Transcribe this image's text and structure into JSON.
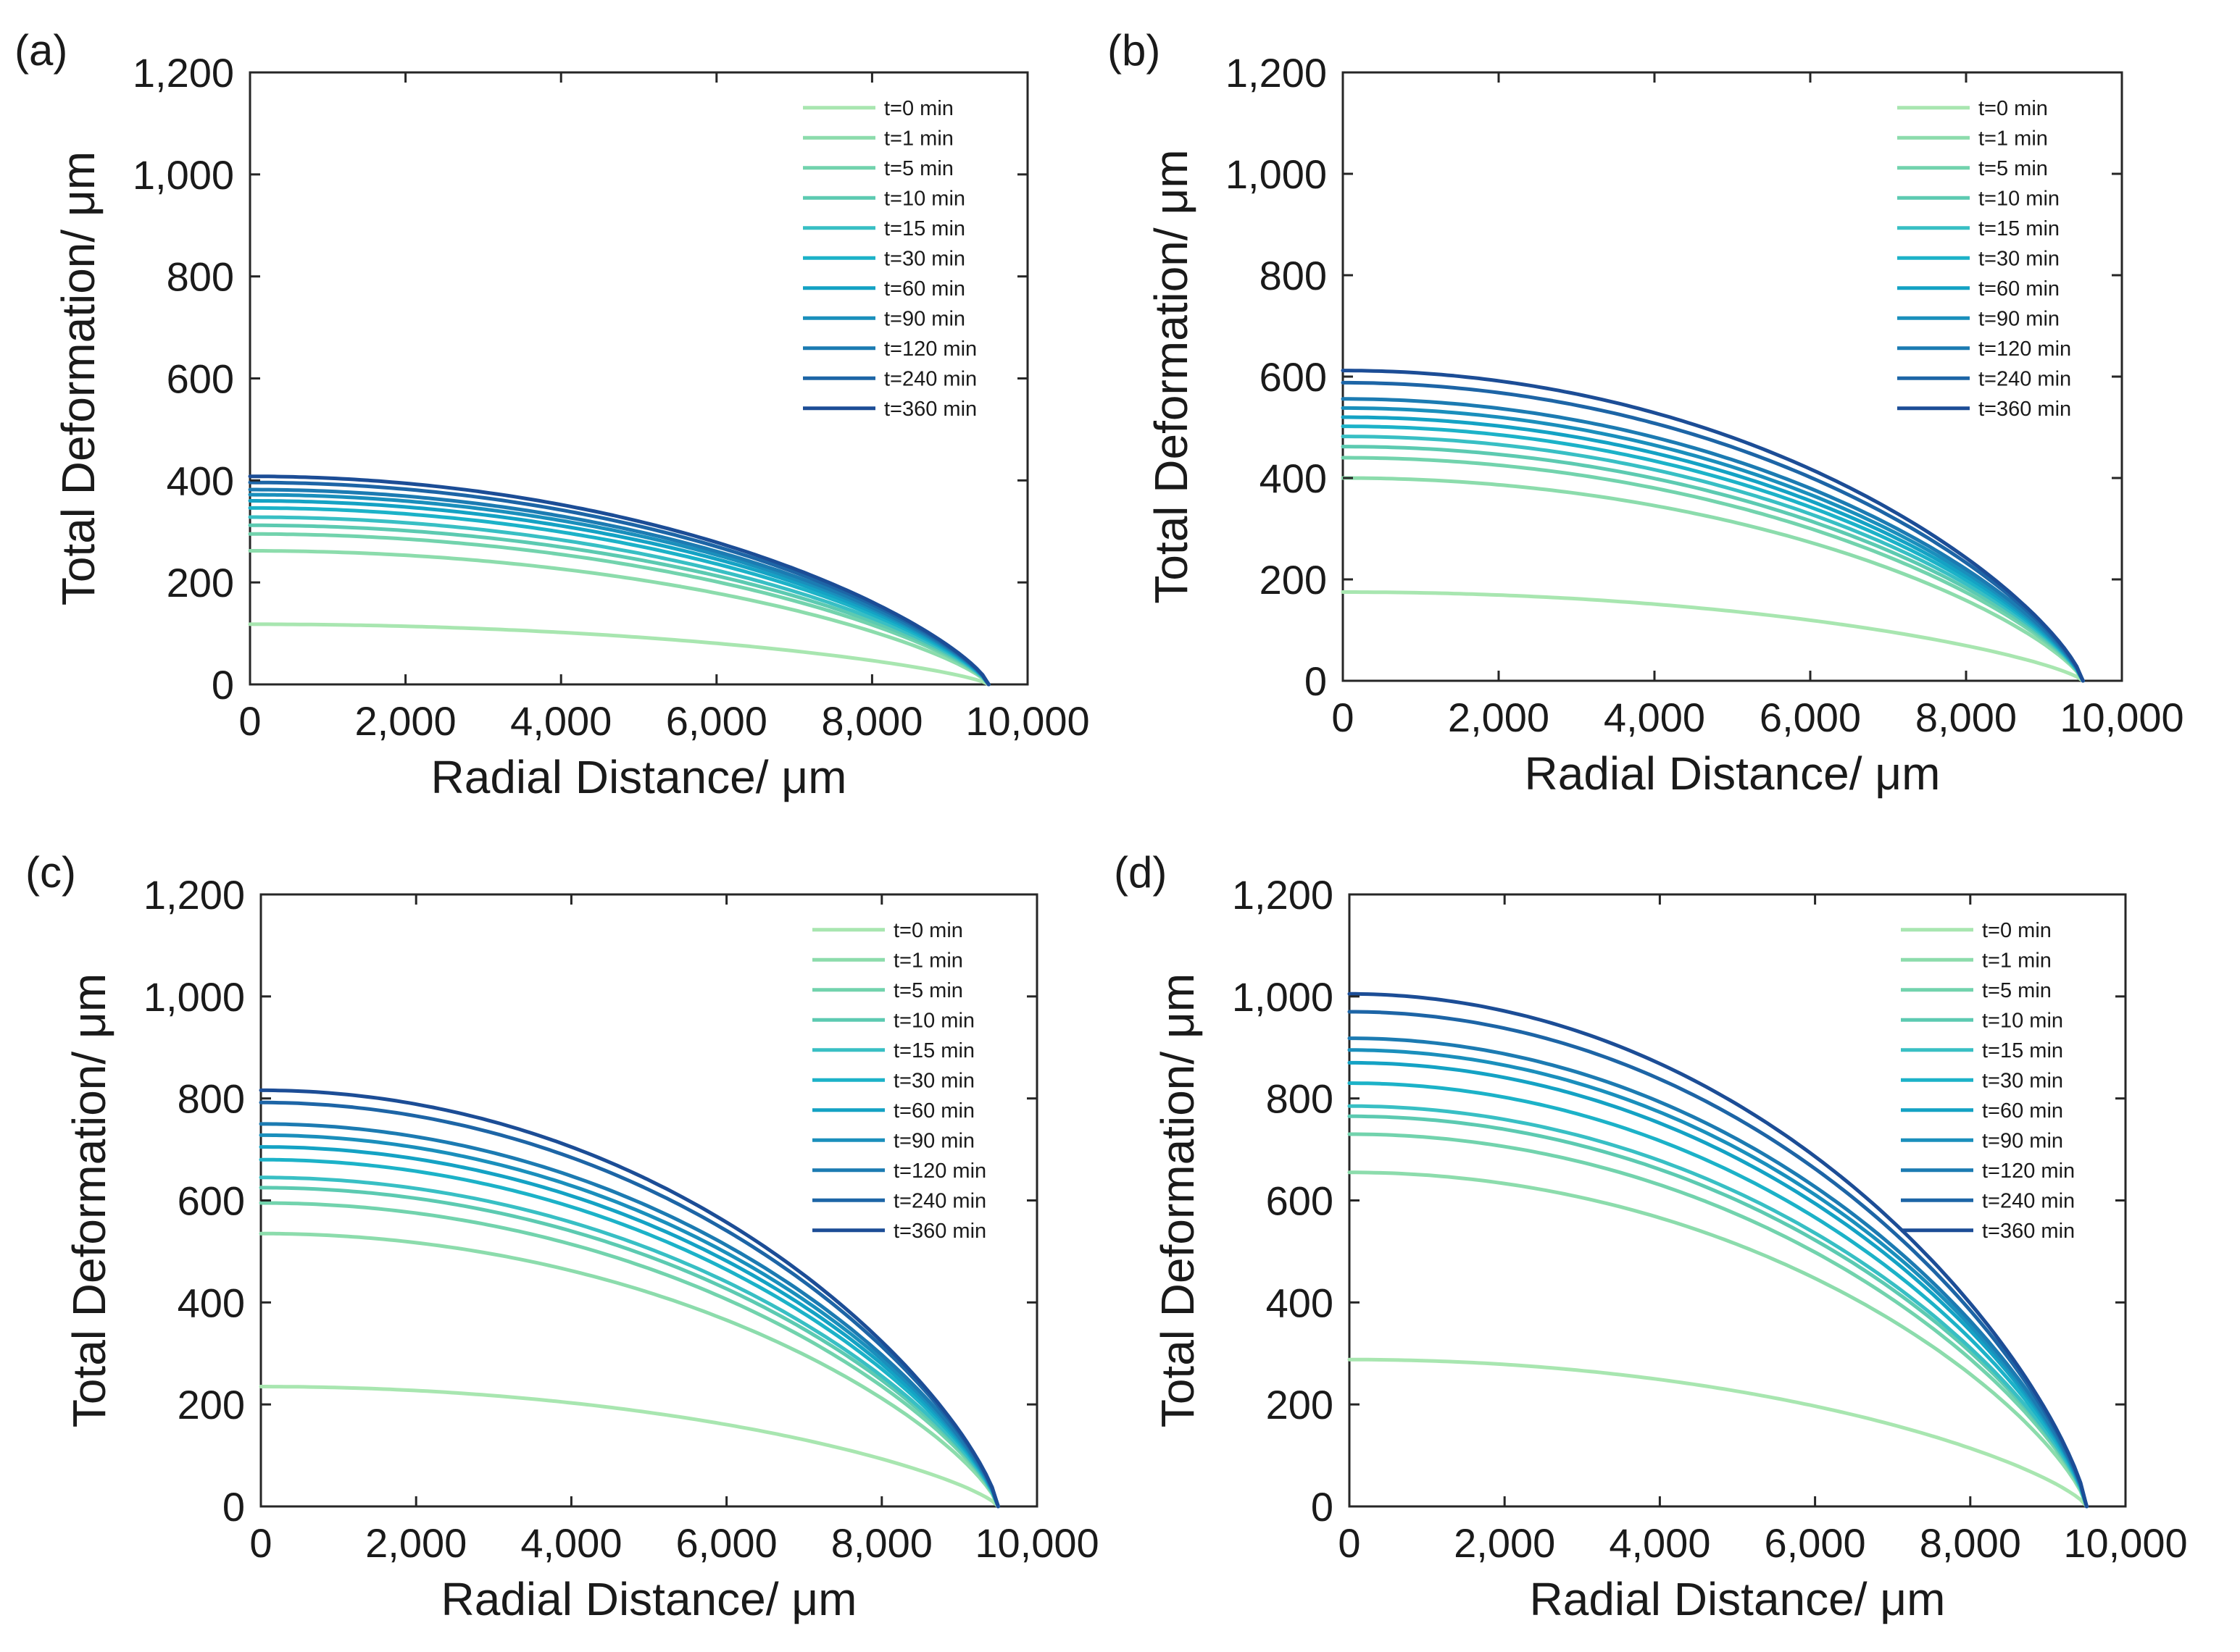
{
  "chart_data": [
    {
      "type": "line",
      "panel_label": "(a)",
      "xlabel": "Radial Distance/ μm",
      "ylabel": "Total Deformation/ μm",
      "xlim": [
        0,
        10000
      ],
      "ylim": [
        0,
        1200
      ],
      "xticks": [
        0,
        2000,
        4000,
        6000,
        8000,
        10000
      ],
      "xtick_labels": [
        "0",
        "2,000",
        "4,000",
        "6,000",
        "8,000",
        "10,000"
      ],
      "yticks": [
        0,
        200,
        400,
        600,
        800,
        1000,
        1200
      ],
      "ytick_labels": [
        "0",
        "200",
        "400",
        "600",
        "800",
        "1,000",
        "1,200"
      ],
      "grid": false,
      "legend_position": "top-right",
      "x_end": 9500,
      "series": [
        {
          "name": "t=0 min",
          "center": 118,
          "color": "#a8e6b0"
        },
        {
          "name": "t=1 min",
          "center": 262,
          "color": "#8cdcac"
        },
        {
          "name": "t=5 min",
          "center": 295,
          "color": "#72d3ad"
        },
        {
          "name": "t=10 min",
          "center": 312,
          "color": "#5ccab1"
        },
        {
          "name": "t=15 min",
          "center": 328,
          "color": "#38bfc4"
        },
        {
          "name": "t=30 min",
          "center": 346,
          "color": "#1cb2c8"
        },
        {
          "name": "t=60 min",
          "center": 360,
          "color": "#14a2c4"
        },
        {
          "name": "t=90 min",
          "center": 372,
          "color": "#1a8fbc"
        },
        {
          "name": "t=120 min",
          "center": 382,
          "color": "#1c7bb2"
        },
        {
          "name": "t=240 min",
          "center": 396,
          "color": "#1d65a6"
        },
        {
          "name": "t=360 min",
          "center": 408,
          "color": "#1c4d96"
        }
      ]
    },
    {
      "type": "line",
      "panel_label": "(b)",
      "xlabel": "Radial Distance/ μm",
      "ylabel": "Total Deformation/ μm",
      "xlim": [
        0,
        10000
      ],
      "ylim": [
        0,
        1200
      ],
      "xticks": [
        0,
        2000,
        4000,
        6000,
        8000,
        10000
      ],
      "xtick_labels": [
        "0",
        "2,000",
        "4,000",
        "6,000",
        "8,000",
        "10,000"
      ],
      "yticks": [
        0,
        200,
        400,
        600,
        800,
        1000,
        1200
      ],
      "ytick_labels": [
        "0",
        "200",
        "400",
        "600",
        "800",
        "1,000",
        "1,200"
      ],
      "grid": false,
      "legend_position": "top-right",
      "x_end": 9500,
      "series": [
        {
          "name": "t=0 min",
          "center": 175,
          "color": "#a8e6b0"
        },
        {
          "name": "t=1 min",
          "center": 400,
          "color": "#8cdcac"
        },
        {
          "name": "t=5 min",
          "center": 440,
          "color": "#72d3ad"
        },
        {
          "name": "t=10 min",
          "center": 462,
          "color": "#5ccab1"
        },
        {
          "name": "t=15 min",
          "center": 482,
          "color": "#38bfc4"
        },
        {
          "name": "t=30 min",
          "center": 502,
          "color": "#1cb2c8"
        },
        {
          "name": "t=60 min",
          "center": 520,
          "color": "#14a2c4"
        },
        {
          "name": "t=90 min",
          "center": 538,
          "color": "#1a8fbc"
        },
        {
          "name": "t=120 min",
          "center": 556,
          "color": "#1c7bb2"
        },
        {
          "name": "t=240 min",
          "center": 588,
          "color": "#1d65a6"
        },
        {
          "name": "t=360 min",
          "center": 612,
          "color": "#1c4d96"
        }
      ]
    },
    {
      "type": "line",
      "panel_label": "(c)",
      "xlabel": "Radial Distance/ μm",
      "ylabel": "Total Deformation/ μm",
      "xlim": [
        0,
        10000
      ],
      "ylim": [
        0,
        1200
      ],
      "xticks": [
        0,
        2000,
        4000,
        6000,
        8000,
        10000
      ],
      "xtick_labels": [
        "0",
        "2,000",
        "4,000",
        "6,000",
        "8,000",
        "10,000"
      ],
      "yticks": [
        0,
        200,
        400,
        600,
        800,
        1000,
        1200
      ],
      "ytick_labels": [
        "0",
        "200",
        "400",
        "600",
        "800",
        "1,000",
        "1,200"
      ],
      "grid": false,
      "legend_position": "top-right",
      "x_end": 9500,
      "series": [
        {
          "name": "t=0 min",
          "center": 235,
          "color": "#a8e6b0"
        },
        {
          "name": "t=1 min",
          "center": 535,
          "color": "#8cdcac"
        },
        {
          "name": "t=5 min",
          "center": 595,
          "color": "#72d3ad"
        },
        {
          "name": "t=10 min",
          "center": 625,
          "color": "#5ccab1"
        },
        {
          "name": "t=15 min",
          "center": 645,
          "color": "#38bfc4"
        },
        {
          "name": "t=30 min",
          "center": 680,
          "color": "#1cb2c8"
        },
        {
          "name": "t=60 min",
          "center": 705,
          "color": "#14a2c4"
        },
        {
          "name": "t=90 min",
          "center": 728,
          "color": "#1a8fbc"
        },
        {
          "name": "t=120 min",
          "center": 750,
          "color": "#1c7bb2"
        },
        {
          "name": "t=240 min",
          "center": 792,
          "color": "#1d65a6"
        },
        {
          "name": "t=360 min",
          "center": 816,
          "color": "#1c4d96"
        }
      ]
    },
    {
      "type": "line",
      "panel_label": "(d)",
      "xlabel": "Radial Distance/ μm",
      "ylabel": "Total Deformation/ μm",
      "xlim": [
        0,
        10000
      ],
      "ylim": [
        0,
        1200
      ],
      "xticks": [
        0,
        2000,
        4000,
        6000,
        8000,
        10000
      ],
      "xtick_labels": [
        "0",
        "2,000",
        "4,000",
        "6,000",
        "8,000",
        "10,000"
      ],
      "yticks": [
        0,
        200,
        400,
        600,
        800,
        1000,
        1200
      ],
      "ytick_labels": [
        "0",
        "200",
        "400",
        "600",
        "800",
        "1,000",
        "1,200"
      ],
      "grid": false,
      "legend_position": "top-right",
      "x_end": 9500,
      "series": [
        {
          "name": "t=0 min",
          "center": 288,
          "color": "#a8e6b0"
        },
        {
          "name": "t=1 min",
          "center": 655,
          "color": "#8cdcac"
        },
        {
          "name": "t=5 min",
          "center": 730,
          "color": "#72d3ad"
        },
        {
          "name": "t=10 min",
          "center": 765,
          "color": "#5ccab1"
        },
        {
          "name": "t=15 min",
          "center": 785,
          "color": "#38bfc4"
        },
        {
          "name": "t=30 min",
          "center": 830,
          "color": "#1cb2c8"
        },
        {
          "name": "t=60 min",
          "center": 870,
          "color": "#14a2c4"
        },
        {
          "name": "t=90 min",
          "center": 895,
          "color": "#1a8fbc"
        },
        {
          "name": "t=120 min",
          "center": 918,
          "color": "#1c7bb2"
        },
        {
          "name": "t=240 min",
          "center": 970,
          "color": "#1d65a6"
        },
        {
          "name": "t=360 min",
          "center": 1005,
          "color": "#1c4d96"
        }
      ]
    }
  ]
}
